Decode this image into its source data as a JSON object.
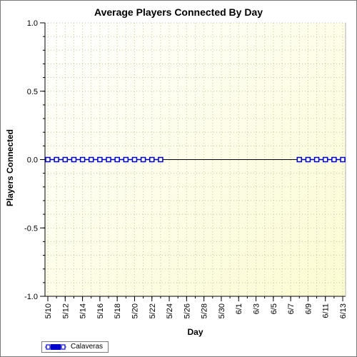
{
  "chart_data": {
    "type": "line",
    "title": "Average Players Connected By Day",
    "xlabel": "Day",
    "ylabel": "Players Connected",
    "ylim": [
      -1.0,
      1.0
    ],
    "yticks": [
      "1.0",
      "0.5",
      "0.0",
      "-0.5",
      "-1.0"
    ],
    "ytick_values": [
      1.0,
      0.5,
      0.0,
      -0.5,
      -1.0
    ],
    "xticks": [
      "5/10",
      "5/12",
      "5/14",
      "5/16",
      "5/18",
      "5/20",
      "5/22",
      "5/24",
      "5/26",
      "5/28",
      "5/30",
      "6/1",
      "6/3",
      "6/5",
      "6/7",
      "6/9",
      "6/11",
      "6/13"
    ],
    "x": [
      "5/10",
      "5/11",
      "5/12",
      "5/13",
      "5/14",
      "5/15",
      "5/16",
      "5/17",
      "5/18",
      "5/19",
      "5/20",
      "5/21",
      "5/22",
      "5/23",
      "6/8",
      "6/9",
      "6/10",
      "6/11",
      "6/12",
      "6/13"
    ],
    "series": [
      {
        "name": "Calaveras",
        "values": [
          0,
          0,
          0,
          0,
          0,
          0,
          0,
          0,
          0,
          0,
          0,
          0,
          0,
          0,
          0,
          0,
          0,
          0,
          0,
          0
        ],
        "color": "#0000cc"
      }
    ],
    "grid": true,
    "legend_position": "bottom-left",
    "background_gradient": [
      "#ffffff",
      "#fbfbd2"
    ]
  }
}
